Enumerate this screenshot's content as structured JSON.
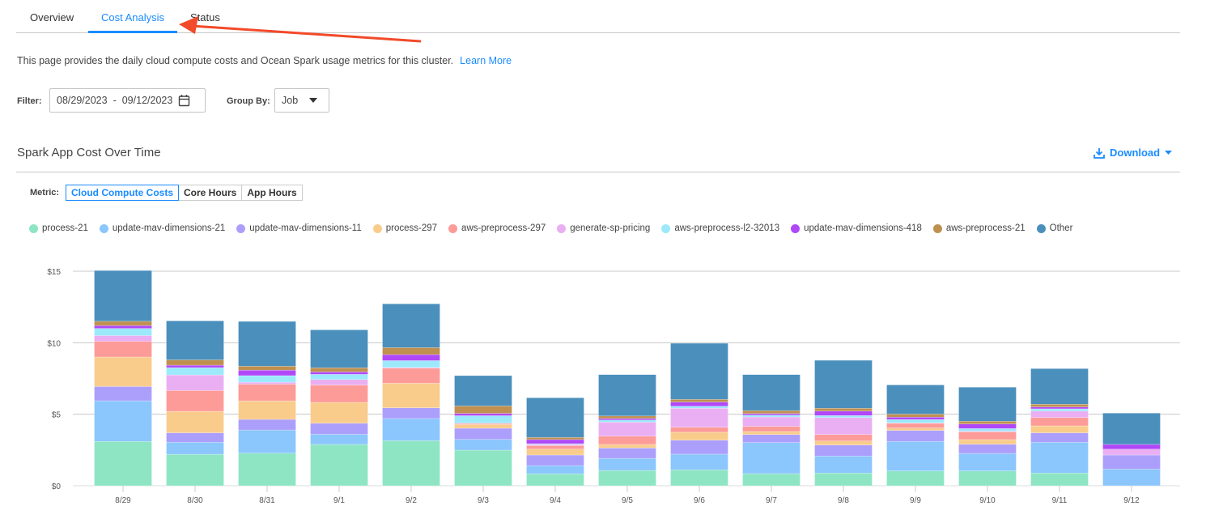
{
  "tabs": [
    {
      "label": "Overview"
    },
    {
      "label": "Cost Analysis",
      "active": true
    },
    {
      "label": "Status"
    }
  ],
  "description": "This page provides the daily cloud compute costs and Ocean Spark usage metrics for this cluster.",
  "learn_more": "Learn More",
  "filter": {
    "label": "Filter:",
    "start": "08/29/2023",
    "sep": "-",
    "end": "09/12/2023",
    "icon": "calendar-icon"
  },
  "group_by": {
    "label": "Group By:",
    "value": "Job"
  },
  "section_title": "Spark App Cost Over Time",
  "download": {
    "label": "Download",
    "icon": "download-icon"
  },
  "metric": {
    "label": "Metric:",
    "options": [
      "Cloud Compute Costs",
      "Core Hours",
      "App Hours"
    ],
    "selected": "Cloud Compute Costs"
  },
  "accent": "#1a8cff",
  "annotation_arrow_color": "#f24a2a",
  "chart_data": {
    "type": "bar",
    "stacked": true,
    "categories": [
      "8/29",
      "8/30",
      "8/31",
      "9/1",
      "9/2",
      "9/3",
      "9/4",
      "9/5",
      "9/6",
      "9/7",
      "9/8",
      "9/9",
      "9/10",
      "9/11",
      "9/12"
    ],
    "y_ticks": [
      "$0",
      "$5",
      "$10",
      "$15"
    ],
    "ylim": [
      0,
      15
    ],
    "grid": true,
    "legend": "top-left",
    "series": [
      {
        "name": "process-21",
        "color": "#8ee5c4",
        "values": [
          3.1,
          2.2,
          2.28,
          2.89,
          3.15,
          2.49,
          0.83,
          1.07,
          1.11,
          0.85,
          0.89,
          1.04,
          1.04,
          0.89,
          0
        ]
      },
      {
        "name": "update-mav-dimensions-21",
        "color": "#8bc6fd",
        "values": [
          2.84,
          0.84,
          1.62,
          0.71,
          1.55,
          0.75,
          0.58,
          0.85,
          1.1,
          2.17,
          1.19,
          2.06,
          1.22,
          2.15,
          1.17
        ]
      },
      {
        "name": "update-mav-dimensions-11",
        "color": "#ac9ffc",
        "values": [
          1.0,
          0.66,
          0.74,
          0.77,
          0.75,
          0.78,
          0.74,
          0.72,
          0.98,
          0.56,
          0.77,
          0.77,
          0.64,
          0.66,
          0.98
        ]
      },
      {
        "name": "process-297",
        "color": "#f9cc8c",
        "values": [
          2.06,
          1.5,
          1.3,
          1.46,
          1.72,
          0.26,
          0.41,
          0.25,
          0.55,
          0.21,
          0.28,
          0.17,
          0.33,
          0.49,
          0
        ]
      },
      {
        "name": "aws-preprocess-297",
        "color": "#fd9b98",
        "values": [
          1.1,
          1.46,
          1.16,
          1.21,
          1.05,
          0.08,
          0.25,
          0.58,
          0.35,
          0.36,
          0.45,
          0.33,
          0.54,
          0.58,
          0
        ]
      },
      {
        "name": "generate-sp-pricing",
        "color": "#eaaff2",
        "values": [
          0.4,
          1.09,
          0.14,
          0.39,
          0.05,
          0.02,
          0.08,
          0.98,
          1.33,
          0.66,
          1.19,
          0.03,
          0.05,
          0.45,
          0.41
        ]
      },
      {
        "name": "aws-preprocess-l2-32013",
        "color": "#9be9fb",
        "values": [
          0.5,
          0.51,
          0.46,
          0.36,
          0.48,
          0.52,
          0.05,
          0.15,
          0.14,
          0.13,
          0.14,
          0.23,
          0.18,
          0.16,
          0
        ]
      },
      {
        "name": "update-mav-dimensions-418",
        "color": "#b048f8",
        "values": [
          0.2,
          0.17,
          0.38,
          0.17,
          0.42,
          0.16,
          0.29,
          0.11,
          0.29,
          0.11,
          0.31,
          0.17,
          0.32,
          0.13,
          0.33
        ]
      },
      {
        "name": "aws-preprocess-21",
        "color": "#bf904f",
        "values": [
          0.3,
          0.37,
          0.28,
          0.29,
          0.49,
          0.52,
          0.15,
          0.17,
          0.19,
          0.2,
          0.2,
          0.21,
          0.19,
          0.19,
          0
        ]
      },
      {
        "name": "Other",
        "color": "#4b8fbc",
        "values": [
          3.55,
          2.73,
          3.13,
          2.65,
          3.06,
          2.12,
          2.77,
          2.89,
          3.92,
          2.52,
          3.35,
          2.04,
          2.38,
          2.49,
          2.19
        ]
      }
    ]
  }
}
